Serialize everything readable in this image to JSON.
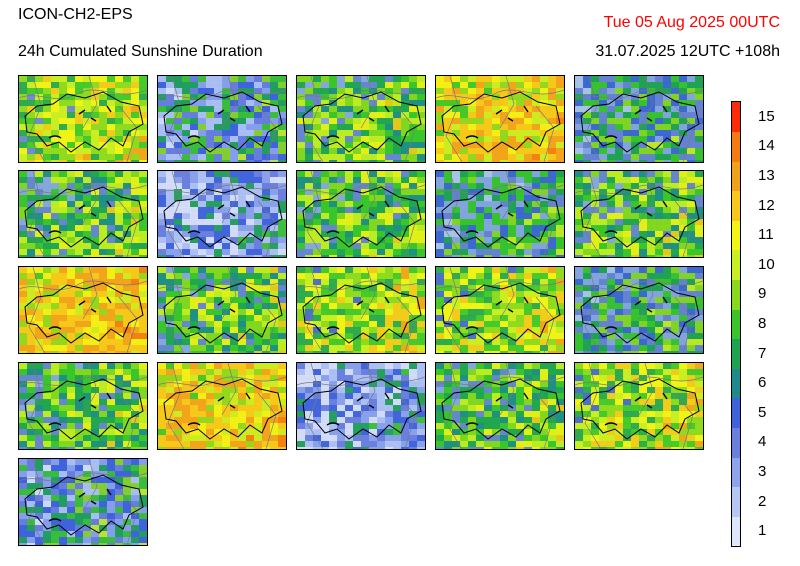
{
  "header": {
    "model": "ICON-CH2-EPS",
    "parameter": "24h Cumulated Sunshine Duration",
    "valid_time": "Tue 05 Aug 2025 00UTC",
    "run_info": "31.07.2025 12UTC +108h"
  },
  "colorbar": {
    "levels": [
      "1",
      "2",
      "3",
      "4",
      "5",
      "6",
      "7",
      "8",
      "9",
      "10",
      "11",
      "12",
      "13",
      "14",
      "15"
    ],
    "colors": [
      "#dde6fb",
      "#b4c7f5",
      "#8da4ec",
      "#6a7fde",
      "#3f63dc",
      "#1e8a8c",
      "#1fa353",
      "#39c52b",
      "#8ad81e",
      "#c9ee22",
      "#f3f315",
      "#f6c81b",
      "#f2a11b",
      "#f47a12",
      "#ff2a0a"
    ]
  },
  "members": [
    {
      "tone": "warm-green"
    },
    {
      "tone": "blue"
    },
    {
      "tone": "green"
    },
    {
      "tone": "orange"
    },
    {
      "tone": "blue-green"
    },
    {
      "tone": "green"
    },
    {
      "tone": "pale"
    },
    {
      "tone": "green"
    },
    {
      "tone": "blue-green"
    },
    {
      "tone": "green"
    },
    {
      "tone": "orange"
    },
    {
      "tone": "green"
    },
    {
      "tone": "orange-green"
    },
    {
      "tone": "orange-green"
    },
    {
      "tone": "blue-green"
    },
    {
      "tone": "green"
    },
    {
      "tone": "orange"
    },
    {
      "tone": "pale"
    },
    {
      "tone": "green"
    },
    {
      "tone": "orange-green"
    },
    {
      "tone": "blue"
    }
  ]
}
